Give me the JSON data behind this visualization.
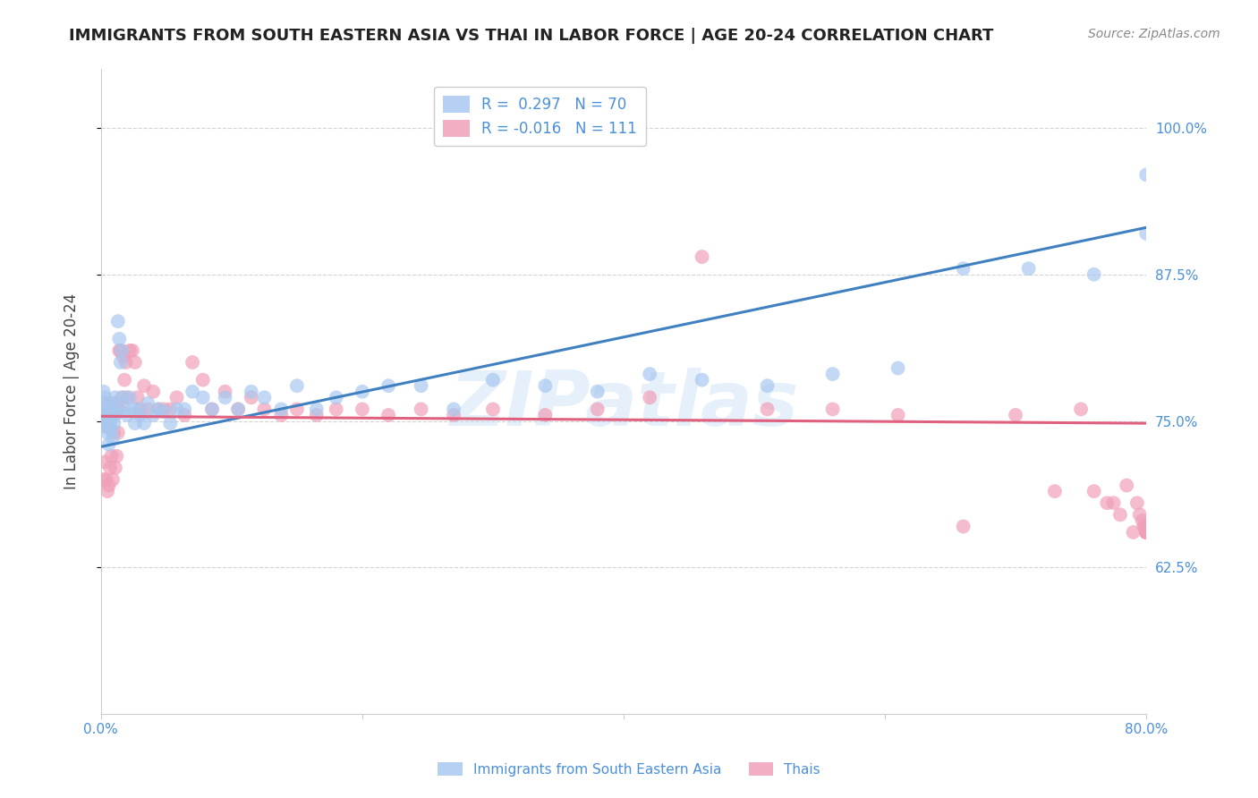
{
  "title": "IMMIGRANTS FROM SOUTH EASTERN ASIA VS THAI IN LABOR FORCE | AGE 20-24 CORRELATION CHART",
  "source": "Source: ZipAtlas.com",
  "ylabel": "In Labor Force | Age 20-24",
  "xlim": [
    0.0,
    0.8
  ],
  "ylim": [
    0.5,
    1.05
  ],
  "xticks": [
    0.0,
    0.2,
    0.4,
    0.6,
    0.8
  ],
  "xticklabels": [
    "0.0%",
    "",
    "",
    "",
    "80.0%"
  ],
  "yticks": [
    0.625,
    0.75,
    0.875,
    1.0
  ],
  "yticklabels": [
    "62.5%",
    "75.0%",
    "87.5%",
    "100.0%"
  ],
  "blue_R": 0.297,
  "blue_N": 70,
  "pink_R": -0.016,
  "pink_N": 111,
  "blue_color": "#A8C8F0",
  "pink_color": "#F0A0B8",
  "blue_line_color": "#4080C0",
  "pink_line_color": "#E06080",
  "legend_blue_label": "Immigrants from South Eastern Asia",
  "legend_pink_label": "Thais",
  "watermark": "ZIPatlas",
  "grid_color": "#C8C8C8",
  "background_color": "#FFFFFF",
  "title_color": "#222222",
  "axis_label_color": "#444444",
  "tick_color": "#4A90D9",
  "blue_line_x0": 0.0,
  "blue_line_y0": 0.728,
  "blue_line_x1": 0.8,
  "blue_line_y1": 0.915,
  "pink_line_x0": 0.0,
  "pink_line_y0": 0.754,
  "pink_line_x1": 0.8,
  "pink_line_y1": 0.748,
  "blue_scatter_x": [
    0.001,
    0.002,
    0.002,
    0.003,
    0.003,
    0.004,
    0.004,
    0.005,
    0.005,
    0.006,
    0.006,
    0.007,
    0.007,
    0.008,
    0.008,
    0.009,
    0.009,
    0.01,
    0.01,
    0.011,
    0.011,
    0.012,
    0.013,
    0.014,
    0.015,
    0.016,
    0.017,
    0.018,
    0.02,
    0.022,
    0.024,
    0.026,
    0.028,
    0.03,
    0.033,
    0.036,
    0.04,
    0.044,
    0.048,
    0.053,
    0.058,
    0.064,
    0.07,
    0.078,
    0.085,
    0.095,
    0.105,
    0.115,
    0.125,
    0.138,
    0.15,
    0.165,
    0.18,
    0.2,
    0.22,
    0.245,
    0.27,
    0.3,
    0.34,
    0.38,
    0.42,
    0.46,
    0.51,
    0.56,
    0.61,
    0.66,
    0.71,
    0.76,
    0.8,
    0.8
  ],
  "blue_scatter_y": [
    0.76,
    0.775,
    0.755,
    0.77,
    0.75,
    0.765,
    0.745,
    0.755,
    0.74,
    0.758,
    0.73,
    0.752,
    0.748,
    0.76,
    0.742,
    0.755,
    0.735,
    0.748,
    0.765,
    0.755,
    0.77,
    0.758,
    0.835,
    0.82,
    0.8,
    0.81,
    0.77,
    0.76,
    0.755,
    0.77,
    0.76,
    0.748,
    0.76,
    0.755,
    0.748,
    0.765,
    0.755,
    0.76,
    0.758,
    0.748,
    0.76,
    0.76,
    0.775,
    0.77,
    0.76,
    0.77,
    0.76,
    0.775,
    0.77,
    0.76,
    0.78,
    0.76,
    0.77,
    0.775,
    0.78,
    0.78,
    0.76,
    0.785,
    0.78,
    0.775,
    0.79,
    0.785,
    0.78,
    0.79,
    0.795,
    0.88,
    0.88,
    0.875,
    0.91,
    0.96
  ],
  "pink_scatter_x": [
    0.001,
    0.002,
    0.002,
    0.003,
    0.003,
    0.004,
    0.004,
    0.005,
    0.005,
    0.006,
    0.006,
    0.007,
    0.007,
    0.008,
    0.008,
    0.009,
    0.009,
    0.01,
    0.01,
    0.011,
    0.011,
    0.012,
    0.012,
    0.013,
    0.013,
    0.014,
    0.014,
    0.015,
    0.016,
    0.017,
    0.018,
    0.019,
    0.02,
    0.022,
    0.024,
    0.026,
    0.028,
    0.03,
    0.033,
    0.036,
    0.04,
    0.044,
    0.048,
    0.053,
    0.058,
    0.064,
    0.07,
    0.078,
    0.085,
    0.095,
    0.105,
    0.115,
    0.125,
    0.138,
    0.15,
    0.165,
    0.18,
    0.2,
    0.22,
    0.245,
    0.27,
    0.3,
    0.34,
    0.38,
    0.42,
    0.46,
    0.51,
    0.56,
    0.61,
    0.66,
    0.7,
    0.73,
    0.75,
    0.76,
    0.77,
    0.775,
    0.78,
    0.785,
    0.79,
    0.793,
    0.795,
    0.797,
    0.798,
    0.799,
    0.8,
    0.8,
    0.8,
    0.8,
    0.8,
    0.8,
    0.8,
    0.8,
    0.8,
    0.8,
    0.8,
    0.8,
    0.8,
    0.8,
    0.8,
    0.8,
    0.8,
    0.8,
    0.8,
    0.8,
    0.8,
    0.8,
    0.8,
    0.8,
    0.8,
    0.8,
    0.8
  ],
  "pink_scatter_y": [
    0.75,
    0.76,
    0.7,
    0.755,
    0.715,
    0.765,
    0.7,
    0.745,
    0.69,
    0.755,
    0.695,
    0.76,
    0.71,
    0.755,
    0.72,
    0.765,
    0.7,
    0.755,
    0.74,
    0.76,
    0.71,
    0.765,
    0.72,
    0.76,
    0.74,
    0.81,
    0.76,
    0.81,
    0.77,
    0.805,
    0.785,
    0.8,
    0.77,
    0.81,
    0.81,
    0.8,
    0.77,
    0.76,
    0.78,
    0.76,
    0.775,
    0.76,
    0.76,
    0.76,
    0.77,
    0.755,
    0.8,
    0.785,
    0.76,
    0.775,
    0.76,
    0.77,
    0.76,
    0.755,
    0.76,
    0.755,
    0.76,
    0.76,
    0.755,
    0.76,
    0.755,
    0.76,
    0.755,
    0.76,
    0.77,
    0.89,
    0.76,
    0.76,
    0.755,
    0.66,
    0.755,
    0.69,
    0.76,
    0.69,
    0.68,
    0.68,
    0.67,
    0.695,
    0.655,
    0.68,
    0.67,
    0.665,
    0.66,
    0.66,
    0.66,
    0.66,
    0.66,
    0.66,
    0.655,
    0.66,
    0.655,
    0.66,
    0.66,
    0.66,
    0.66,
    0.655,
    0.66,
    0.66,
    0.66,
    0.66,
    0.66,
    0.66,
    0.66,
    0.66,
    0.66,
    0.66,
    0.66,
    0.66,
    0.655,
    0.66,
    0.66
  ]
}
